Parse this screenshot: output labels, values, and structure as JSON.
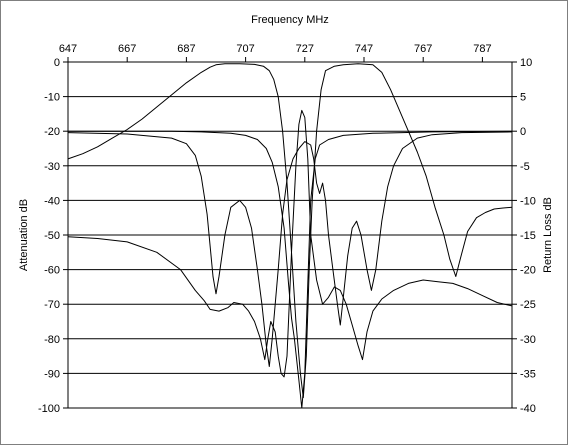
{
  "chart_data": {
    "type": "line",
    "xlabel": "Frequency MHz",
    "ylabel_left": "Attenuation dB",
    "ylabel_right": "Return Loss dB",
    "x_range": [
      647,
      797
    ],
    "x_ticks": [
      647,
      667,
      687,
      707,
      727,
      747,
      767,
      787
    ],
    "y_left_range": [
      -100,
      0
    ],
    "y_left_ticks": [
      0,
      -10,
      -20,
      -30,
      -40,
      -50,
      -60,
      -70,
      -80,
      -90,
      -100
    ],
    "y_right_range": [
      -40,
      10
    ],
    "y_right_ticks": [
      10,
      5,
      0,
      -5,
      -10,
      -15,
      -20,
      -25,
      -30,
      -35,
      -40
    ],
    "grid": "horizontal",
    "colors": {
      "line": "#000000",
      "grid": "#000000",
      "background": "#ffffff"
    },
    "series": [
      {
        "axis": "left",
        "points": [
          [
            647,
            -28
          ],
          [
            652,
            -26.5
          ],
          [
            657,
            -24.5
          ],
          [
            662,
            -22
          ],
          [
            667,
            -19.5
          ],
          [
            672,
            -16.5
          ],
          [
            677,
            -13
          ],
          [
            682,
            -9.5
          ],
          [
            687,
            -6
          ],
          [
            692,
            -3
          ],
          [
            695,
            -1.5
          ],
          [
            697,
            -0.8
          ],
          [
            700,
            -0.5
          ],
          [
            705,
            -0.5
          ],
          [
            710,
            -0.7
          ],
          [
            713,
            -1.2
          ],
          [
            715,
            -2.5
          ],
          [
            716.5,
            -5
          ],
          [
            718,
            -10
          ],
          [
            719.5,
            -20
          ],
          [
            721,
            -35
          ],
          [
            722.5,
            -55
          ],
          [
            724,
            -75
          ],
          [
            725.5,
            -90
          ],
          [
            726.5,
            -97
          ],
          [
            727.5,
            -85
          ],
          [
            728.5,
            -60
          ],
          [
            729.5,
            -40
          ],
          [
            731,
            -20
          ],
          [
            732.5,
            -8
          ],
          [
            734,
            -2.5
          ],
          [
            737,
            -1.2
          ],
          [
            740,
            -0.8
          ],
          [
            745,
            -0.5
          ],
          [
            750,
            -0.8
          ],
          [
            753,
            -3
          ],
          [
            756,
            -8
          ],
          [
            759,
            -14
          ],
          [
            762,
            -20
          ],
          [
            765,
            -26
          ],
          [
            768,
            -33
          ],
          [
            771,
            -42
          ],
          [
            774,
            -50
          ],
          [
            776,
            -57
          ],
          [
            778,
            -62
          ],
          [
            779.5,
            -57
          ],
          [
            782,
            -49
          ],
          [
            785,
            -45
          ],
          [
            788,
            -43.5
          ],
          [
            791,
            -42.5
          ],
          [
            794,
            -42.2
          ],
          [
            797,
            -42
          ]
        ]
      },
      {
        "axis": "left",
        "points": [
          [
            647,
            -50.5
          ],
          [
            657,
            -51
          ],
          [
            667,
            -52
          ],
          [
            677,
            -55
          ],
          [
            685,
            -60
          ],
          [
            690,
            -66
          ],
          [
            693,
            -69
          ],
          [
            695,
            -71.5
          ],
          [
            698,
            -72
          ],
          [
            701,
            -71
          ],
          [
            703,
            -69.5
          ],
          [
            706,
            -70
          ],
          [
            708,
            -72
          ],
          [
            710,
            -75
          ],
          [
            712,
            -80
          ],
          [
            713.5,
            -86
          ],
          [
            714.5,
            -80
          ],
          [
            715.5,
            -75
          ],
          [
            717,
            -78
          ],
          [
            718,
            -85
          ],
          [
            719,
            -90
          ],
          [
            720,
            -91
          ],
          [
            721,
            -85
          ],
          [
            722.5,
            -55
          ],
          [
            724,
            -30
          ],
          [
            725,
            -18
          ],
          [
            726,
            -14
          ],
          [
            727,
            -16
          ],
          [
            728,
            -28
          ],
          [
            729,
            -50
          ],
          [
            731,
            -63
          ],
          [
            733,
            -70
          ],
          [
            735,
            -68
          ],
          [
            737,
            -65
          ],
          [
            739,
            -66
          ],
          [
            741,
            -70
          ],
          [
            743,
            -76
          ],
          [
            745,
            -82
          ],
          [
            746.5,
            -86
          ],
          [
            748,
            -78
          ],
          [
            750,
            -72
          ],
          [
            753,
            -68.5
          ],
          [
            757,
            -66
          ],
          [
            762,
            -64
          ],
          [
            767,
            -63
          ],
          [
            772,
            -63.5
          ],
          [
            777,
            -64
          ],
          [
            782,
            -65.5
          ],
          [
            787,
            -67.5
          ],
          [
            792,
            -69.5
          ],
          [
            797,
            -70.5
          ]
        ]
      },
      {
        "axis": "right",
        "points": [
          [
            647,
            -0.2
          ],
          [
            667,
            -0.4
          ],
          [
            682,
            -1
          ],
          [
            687,
            -1.8
          ],
          [
            690,
            -3.5
          ],
          [
            692,
            -6.5
          ],
          [
            694,
            -12
          ],
          [
            696,
            -21
          ],
          [
            697,
            -23.5
          ],
          [
            698,
            -21
          ],
          [
            700,
            -15
          ],
          [
            702,
            -11
          ],
          [
            705,
            -10
          ],
          [
            707,
            -11
          ],
          [
            709,
            -14
          ],
          [
            711,
            -20
          ],
          [
            712.5,
            -25
          ],
          [
            714,
            -31
          ],
          [
            715,
            -34
          ],
          [
            716,
            -30
          ],
          [
            718,
            -20
          ],
          [
            719.5,
            -12
          ],
          [
            721,
            -7
          ],
          [
            723,
            -4
          ],
          [
            725,
            -2.5
          ],
          [
            727,
            -1.5
          ],
          [
            729,
            -2
          ],
          [
            730,
            -4
          ],
          [
            731,
            -7.5
          ],
          [
            732,
            -9
          ],
          [
            733,
            -7.5
          ],
          [
            734,
            -10
          ],
          [
            735,
            -15
          ],
          [
            736.5,
            -20
          ],
          [
            738,
            -25
          ],
          [
            739,
            -28
          ],
          [
            740,
            -24
          ],
          [
            741.5,
            -18
          ],
          [
            743,
            -14
          ],
          [
            744.5,
            -13
          ],
          [
            746,
            -15
          ],
          [
            748,
            -20
          ],
          [
            749.5,
            -23
          ],
          [
            751,
            -20
          ],
          [
            753,
            -13
          ],
          [
            755,
            -8
          ],
          [
            757,
            -5
          ],
          [
            760,
            -2.5
          ],
          [
            765,
            -1
          ],
          [
            770,
            -0.5
          ],
          [
            780,
            -0.2
          ],
          [
            797,
            -0.1
          ]
        ]
      },
      {
        "axis": "right",
        "points": [
          [
            647,
            0
          ],
          [
            667,
            0
          ],
          [
            682,
            0
          ],
          [
            692,
            -0.1
          ],
          [
            702,
            -0.3
          ],
          [
            707,
            -0.6
          ],
          [
            711,
            -1.2
          ],
          [
            714,
            -2.5
          ],
          [
            716,
            -4.5
          ],
          [
            718,
            -8
          ],
          [
            720,
            -14
          ],
          [
            721.5,
            -22
          ],
          [
            722.5,
            -27
          ],
          [
            723.5,
            -30
          ],
          [
            725,
            -36
          ],
          [
            726,
            -40
          ],
          [
            727,
            -35
          ],
          [
            728,
            -22
          ],
          [
            729,
            -10
          ],
          [
            730.5,
            -4
          ],
          [
            732,
            -2
          ],
          [
            735,
            -1.2
          ],
          [
            740,
            -0.6
          ],
          [
            750,
            -0.3
          ],
          [
            760,
            -0.2
          ],
          [
            770,
            -0.1
          ],
          [
            797,
            0
          ]
        ]
      }
    ]
  }
}
